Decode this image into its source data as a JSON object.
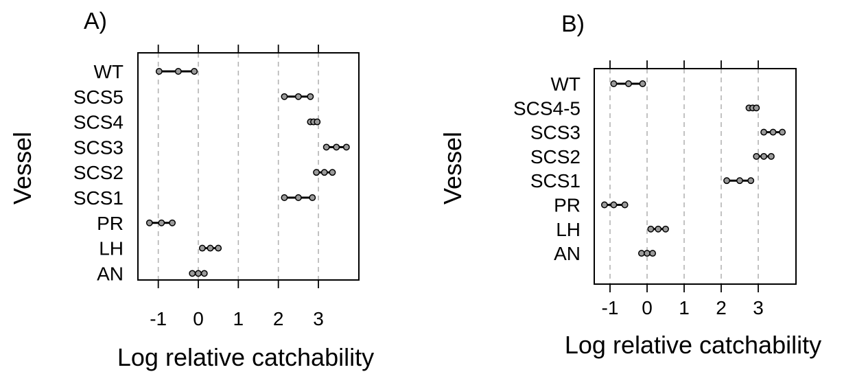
{
  "chart_data": [
    {
      "panel_label": "A)",
      "type": "scatter",
      "subtype": "dot-range",
      "xlabel": "Log relative catchability",
      "ylabel": "Vessel",
      "xticks": [
        "-1",
        "0",
        "1",
        "2",
        "3"
      ],
      "xlim": [
        -1.5,
        4.0
      ],
      "grid": "vertical dashed at x ticks",
      "categories": [
        "WT",
        "SCS5",
        "SCS4",
        "SCS3",
        "SCS2",
        "SCS1",
        "PR",
        "LH",
        "AN"
      ],
      "intervals": [
        {
          "category": "WT",
          "low": -0.98,
          "mid": -0.5,
          "high": -0.1
        },
        {
          "category": "SCS5",
          "low": 2.15,
          "mid": 2.5,
          "high": 2.8
        },
        {
          "category": "SCS4",
          "low": 2.8,
          "mid": 2.88,
          "high": 2.97
        },
        {
          "category": "SCS3",
          "low": 3.2,
          "mid": 3.45,
          "high": 3.7
        },
        {
          "category": "SCS2",
          "low": 2.95,
          "mid": 3.15,
          "high": 3.35
        },
        {
          "category": "SCS1",
          "low": 2.15,
          "mid": 2.5,
          "high": 2.85
        },
        {
          "category": "PR",
          "low": -1.22,
          "mid": -0.92,
          "high": -0.65
        },
        {
          "category": "LH",
          "low": 0.1,
          "mid": 0.3,
          "high": 0.5
        },
        {
          "category": "AN",
          "low": -0.15,
          "mid": 0.0,
          "high": 0.15
        }
      ]
    },
    {
      "panel_label": "B)",
      "type": "scatter",
      "subtype": "dot-range",
      "xlabel": "Log relative catchability",
      "ylabel": "Vessel",
      "xticks": [
        "-1",
        "0",
        "1",
        "2",
        "3"
      ],
      "xlim": [
        -1.3,
        4.0
      ],
      "grid": "vertical dashed at x ticks",
      "categories": [
        "WT",
        "SCS4-5",
        "SCS3",
        "SCS2",
        "SCS1",
        "PR",
        "LH",
        "AN"
      ],
      "intervals": [
        {
          "category": "WT",
          "low": -0.9,
          "mid": -0.5,
          "high": -0.12
        },
        {
          "category": "SCS4-5",
          "low": 2.75,
          "mid": 2.85,
          "high": 2.95
        },
        {
          "category": "SCS3",
          "low": 3.15,
          "mid": 3.4,
          "high": 3.65
        },
        {
          "category": "SCS2",
          "low": 2.95,
          "mid": 3.15,
          "high": 3.35
        },
        {
          "category": "SCS1",
          "low": 2.15,
          "mid": 2.5,
          "high": 2.8
        },
        {
          "category": "PR",
          "low": -1.15,
          "mid": -0.9,
          "high": -0.6
        },
        {
          "category": "LH",
          "low": 0.1,
          "mid": 0.3,
          "high": 0.5
        },
        {
          "category": "AN",
          "low": -0.15,
          "mid": 0.0,
          "high": 0.15
        }
      ]
    }
  ]
}
